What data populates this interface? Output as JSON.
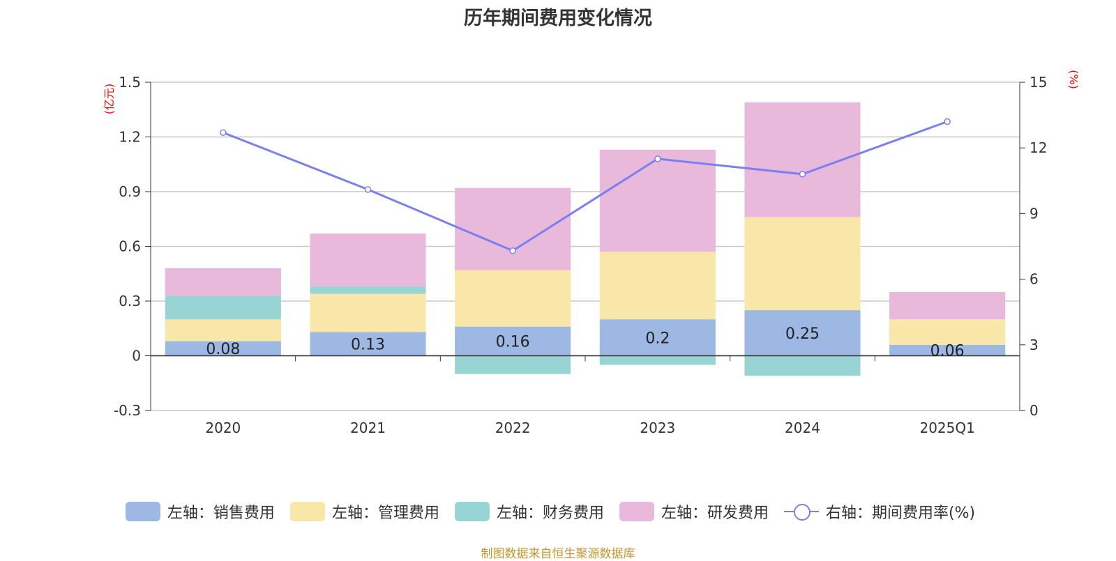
{
  "chart_data": {
    "type": "bar",
    "title": "历年期间费用变化情况",
    "categories": [
      "2020",
      "2021",
      "2022",
      "2023",
      "2024",
      "2025Q1"
    ],
    "left_axis": {
      "unit": "(亿元)",
      "ylim": [
        -0.3,
        1.5
      ],
      "ticks": [
        "-0.3",
        "0",
        "0.3",
        "0.6",
        "0.9",
        "1.2",
        "1.5"
      ]
    },
    "right_axis": {
      "unit": "(%)",
      "ylim": [
        0,
        15
      ],
      "ticks": [
        "0",
        "3",
        "6",
        "9",
        "12",
        "15"
      ]
    },
    "series": [
      {
        "name": "左轴：销售费用",
        "axis": "left",
        "kind": "bar",
        "color": "#9db8e2",
        "values": [
          0.08,
          0.13,
          0.16,
          0.2,
          0.25,
          0.06
        ],
        "labels": [
          "0.08",
          "0.13",
          "0.16",
          "0.2",
          "0.25",
          "0.06"
        ]
      },
      {
        "name": "左轴：管理费用",
        "axis": "left",
        "kind": "bar",
        "color": "#f8e7a8",
        "values": [
          0.12,
          0.21,
          0.31,
          0.37,
          0.51,
          0.14
        ]
      },
      {
        "name": "左轴：财务费用",
        "axis": "left",
        "kind": "bar",
        "color": "#98d4d4",
        "values": [
          0.13,
          0.04,
          -0.1,
          -0.05,
          -0.11,
          0.0
        ]
      },
      {
        "name": "左轴：研发费用",
        "axis": "left",
        "kind": "bar",
        "color": "#e8b9da",
        "values": [
          0.15,
          0.29,
          0.45,
          0.56,
          0.63,
          0.15
        ]
      },
      {
        "name": "右轴：期间费用率(%)",
        "axis": "right",
        "kind": "line",
        "color": "#7b7ff0",
        "values": [
          12.7,
          10.1,
          7.3,
          11.5,
          10.8,
          13.2
        ]
      }
    ],
    "grid": true,
    "legend_position": "bottom"
  },
  "source_note": "制图数据来自恒生聚源数据库"
}
